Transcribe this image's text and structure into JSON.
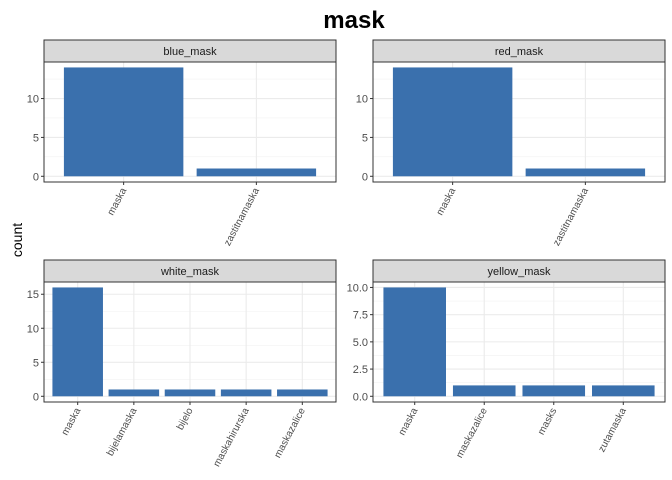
{
  "chart_data": {
    "type": "bar",
    "title": "mask",
    "ylabel": "count",
    "bar_color": "#3a70ad",
    "strip_color": "#d9d9d9",
    "grid": true,
    "panels": [
      {
        "name": "blue_mask",
        "categories": [
          "maska",
          "zastitnamaska"
        ],
        "values": [
          14,
          1
        ],
        "ylim": [
          0,
          14.7
        ],
        "yticks": [
          0,
          5,
          10
        ],
        "ytick_labels": [
          "0",
          "5",
          "10"
        ]
      },
      {
        "name": "red_mask",
        "categories": [
          "maska",
          "zastitnamaska"
        ],
        "values": [
          14,
          1
        ],
        "ylim": [
          0,
          14.7
        ],
        "yticks": [
          0,
          5,
          10
        ],
        "ytick_labels": [
          "0",
          "5",
          "10"
        ]
      },
      {
        "name": "white_mask",
        "categories": [
          "maska",
          "bijelamaska",
          "bijelo",
          "maskahirurska",
          "maskazalice"
        ],
        "values": [
          16,
          1,
          1,
          1,
          1
        ],
        "ylim": [
          0,
          16.8
        ],
        "yticks": [
          0,
          5,
          10,
          15
        ],
        "ytick_labels": [
          "0",
          "5",
          "10",
          "15"
        ]
      },
      {
        "name": "yellow_mask",
        "categories": [
          "maska",
          "maskazalice",
          "masks",
          "zutamaska"
        ],
        "values": [
          10,
          1,
          1,
          1
        ],
        "ylim": [
          0,
          10.5
        ],
        "yticks": [
          0,
          2.5,
          5,
          7.5,
          10
        ],
        "ytick_labels": [
          "0.0",
          "2.5",
          "5.0",
          "7.5",
          "10.0"
        ]
      }
    ]
  }
}
